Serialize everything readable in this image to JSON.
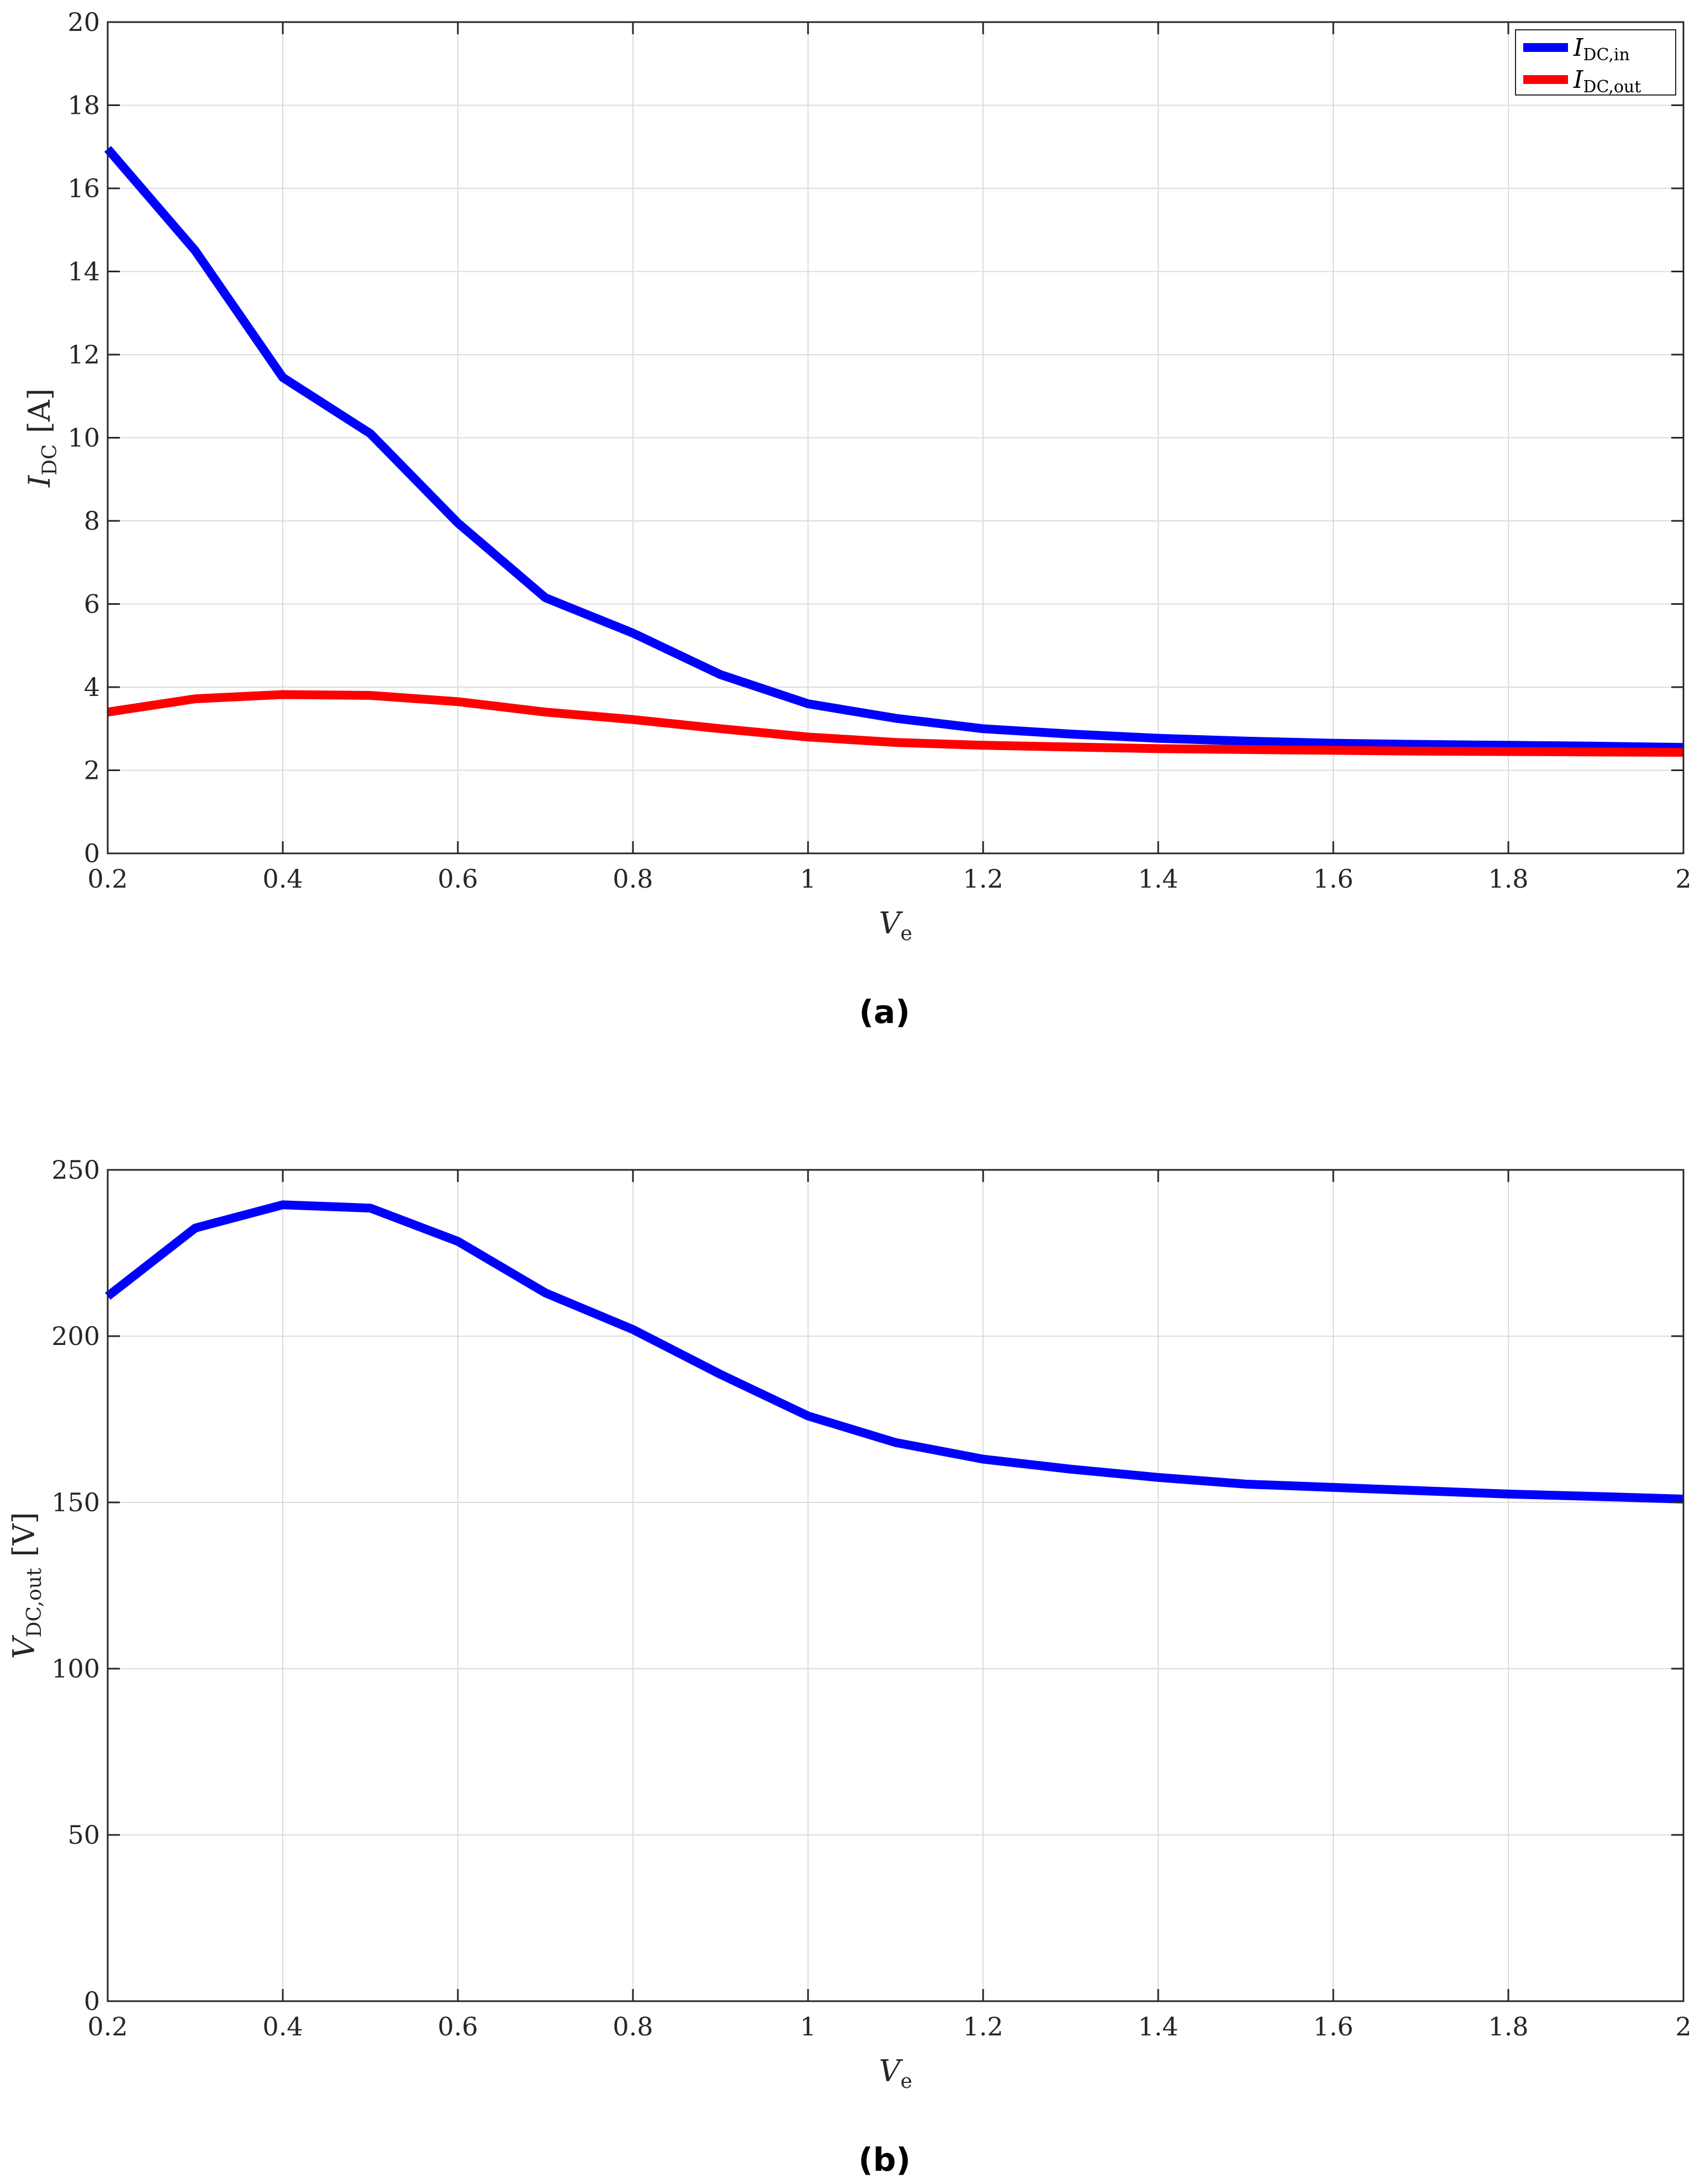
{
  "chart_data": [
    {
      "type": "line",
      "caption": "(a)",
      "xlabel": {
        "main": "V",
        "sub": "e"
      },
      "ylabel": {
        "main": "I",
        "sub": "DC",
        "unit": "[A]"
      },
      "xlim": [
        0.2,
        2
      ],
      "ylim": [
        0,
        20
      ],
      "xticks": [
        "0.2",
        "0.4",
        "0.6",
        "0.8",
        "1",
        "1.2",
        "1.4",
        "1.6",
        "1.8",
        "2"
      ],
      "yticks": [
        "0",
        "2",
        "4",
        "6",
        "8",
        "10",
        "12",
        "14",
        "16",
        "18",
        "20"
      ],
      "grid": true,
      "legend": "top-right",
      "x": [
        0.2,
        0.3,
        0.4,
        0.5,
        0.6,
        0.7,
        0.8,
        0.9,
        1.0,
        1.1,
        1.2,
        1.3,
        1.4,
        1.5,
        1.6,
        1.7,
        1.8,
        1.9,
        2.0
      ],
      "series": [
        {
          "name": {
            "main": "I",
            "sub": "DC,in"
          },
          "color": "#0000ff",
          "values": [
            16.95,
            14.5,
            11.45,
            10.1,
            7.95,
            6.15,
            5.3,
            4.3,
            3.6,
            3.25,
            3.0,
            2.87,
            2.77,
            2.7,
            2.65,
            2.62,
            2.6,
            2.58,
            2.55
          ]
        },
        {
          "name": {
            "main": "I",
            "sub": "DC,out"
          },
          "color": "#ff0000",
          "values": [
            3.4,
            3.72,
            3.82,
            3.8,
            3.65,
            3.4,
            3.22,
            3.0,
            2.8,
            2.67,
            2.6,
            2.56,
            2.52,
            2.5,
            2.48,
            2.46,
            2.45,
            2.44,
            2.43
          ]
        }
      ]
    },
    {
      "type": "line",
      "caption": "(b)",
      "xlabel": {
        "main": "V",
        "sub": "e"
      },
      "ylabel": {
        "main": "V",
        "sub": "DC,out",
        "unit": "[V]"
      },
      "xlim": [
        0.2,
        2
      ],
      "ylim": [
        0,
        250
      ],
      "xticks": [
        "0.2",
        "0.4",
        "0.6",
        "0.8",
        "1",
        "1.2",
        "1.4",
        "1.6",
        "1.8",
        "2"
      ],
      "yticks": [
        "0",
        "50",
        "100",
        "150",
        "200",
        "250"
      ],
      "grid": true,
      "x": [
        0.2,
        0.3,
        0.4,
        0.5,
        0.6,
        0.7,
        0.8,
        0.9,
        1.0,
        1.1,
        1.2,
        1.3,
        1.4,
        1.5,
        1.6,
        1.7,
        1.8,
        1.9,
        2.0
      ],
      "series": [
        {
          "color": "#0000ff",
          "values": [
            212,
            232.5,
            239.5,
            238.5,
            228.5,
            213,
            202,
            188.5,
            176,
            168,
            163,
            160,
            157.5,
            155.5,
            154.5,
            153.5,
            152.5,
            151.8,
            151
          ]
        }
      ]
    }
  ]
}
